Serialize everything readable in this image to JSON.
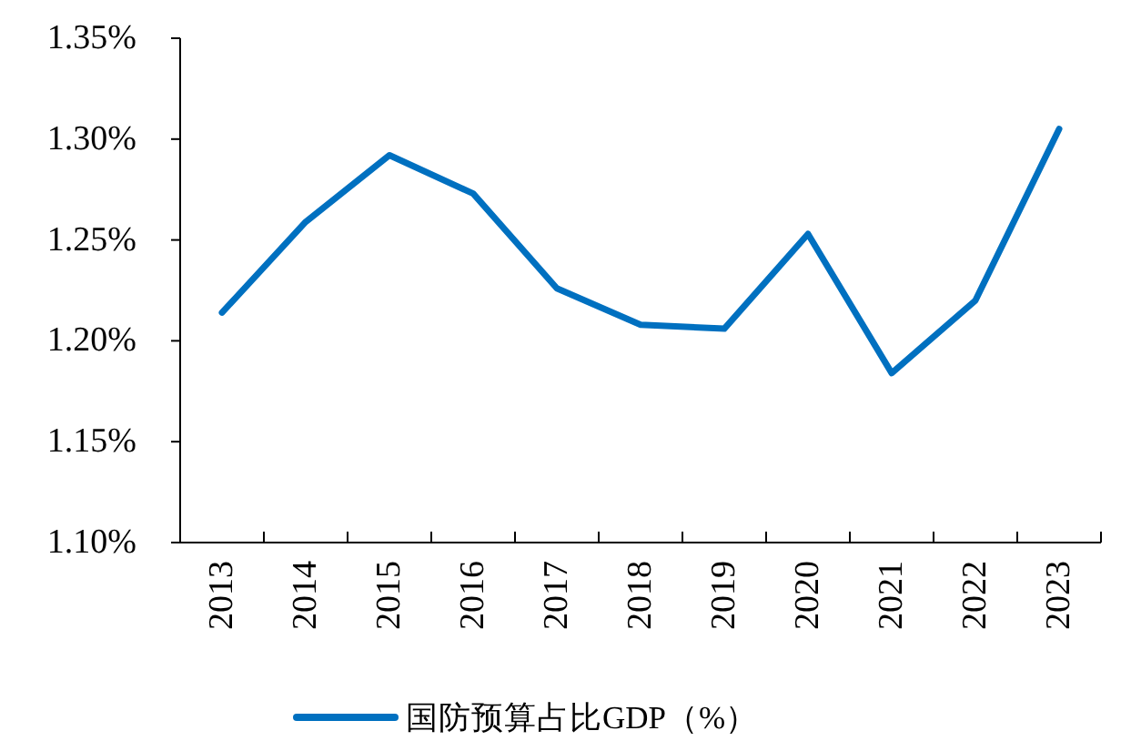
{
  "chart_data": {
    "type": "line",
    "categories": [
      "2013",
      "2014",
      "2015",
      "2016",
      "2017",
      "2018",
      "2019",
      "2020",
      "2021",
      "2022",
      "2023"
    ],
    "series": [
      {
        "name": "国防预算占比GDP（%）",
        "color": "#0070c0",
        "values": [
          1.214,
          1.259,
          1.292,
          1.273,
          1.226,
          1.208,
          1.206,
          1.253,
          1.184,
          1.22,
          1.305
        ]
      }
    ],
    "ylim": [
      1.1,
      1.35
    ],
    "yticks": [
      {
        "value": 1.1,
        "label": "1.10%"
      },
      {
        "value": 1.15,
        "label": "1.15%"
      },
      {
        "value": 1.2,
        "label": "1.20%"
      },
      {
        "value": 1.25,
        "label": "1.25%"
      },
      {
        "value": 1.3,
        "label": "1.30%"
      },
      {
        "value": 1.35,
        "label": "1.35%"
      }
    ],
    "grid": false,
    "legend": "bottom",
    "marker": "none",
    "line_style": "solid"
  }
}
